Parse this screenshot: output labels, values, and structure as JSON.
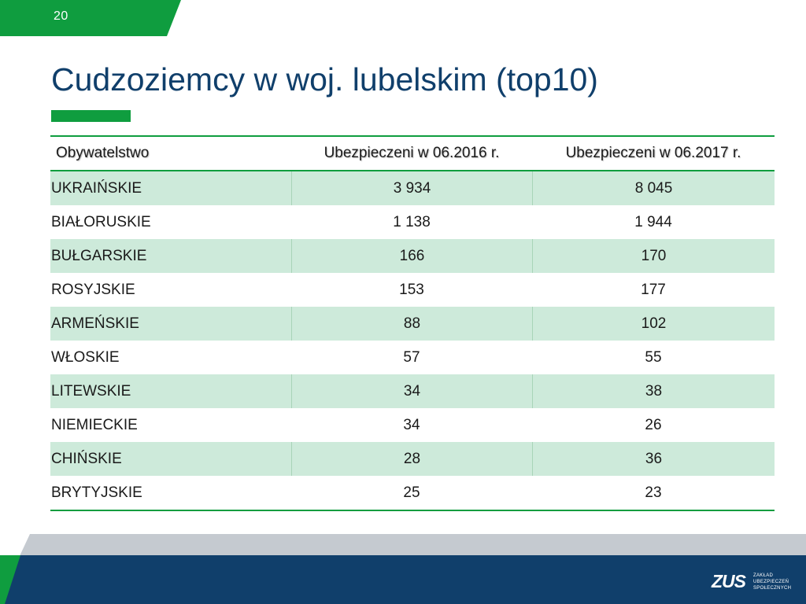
{
  "slide": {
    "page_number": "20",
    "title": "Cudzoziemcy w woj. lubelskim (top10)"
  },
  "table": {
    "headers": [
      "Obywatelstwo",
      "Ubezpieczeni w 06.2016 r.",
      "Ubezpieczeni w 06.2017 r."
    ],
    "rows": [
      [
        "UKRAIŃSKIE",
        "3 934",
        "8 045"
      ],
      [
        "BIAŁORUSKIE",
        "1 138",
        "1 944"
      ],
      [
        "BUŁGARSKIE",
        "166",
        "170"
      ],
      [
        "ROSYJSKIE",
        "153",
        "177"
      ],
      [
        "ARMEŃSKIE",
        "88",
        "102"
      ],
      [
        "WŁOSKIE",
        "57",
        "55"
      ],
      [
        "LITEWSKIE",
        "34",
        "38"
      ],
      [
        "NIEMIECKIE",
        "34",
        "26"
      ],
      [
        "CHIŃSKIE",
        "28",
        "36"
      ],
      [
        "BRYTYJSKIE",
        "25",
        "23"
      ]
    ]
  },
  "logo": {
    "mark": "ZUS",
    "lines": [
      "ZAKŁAD",
      "UBEZPIECZEŃ",
      "SPOŁECZNYCH"
    ]
  },
  "colors": {
    "brand_green": "#0f9d3f",
    "brand_navy": "#103f6b",
    "row_shade": "#cdeada",
    "footer_gray": "#c5cad0"
  }
}
